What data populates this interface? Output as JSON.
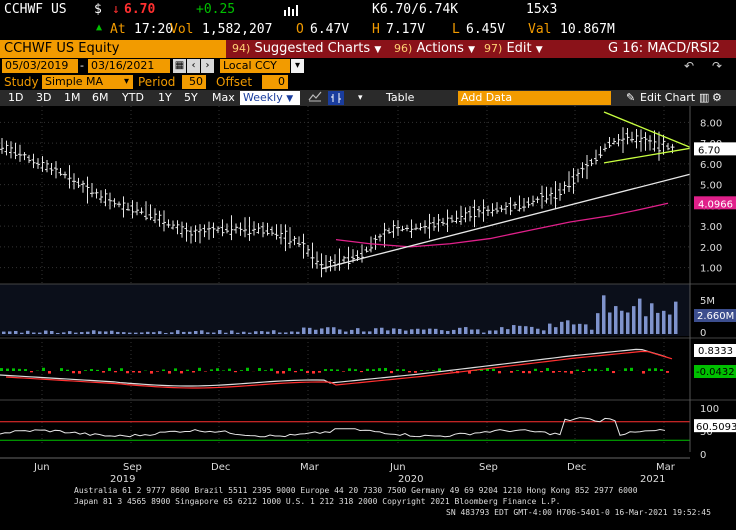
{
  "quote": {
    "ticker": "CCHWF US",
    "currency": "$",
    "last": "6.70",
    "change": "+0.25",
    "bid_ask": "K6.70/6.74K",
    "size": "15x3",
    "at_label": "At",
    "time": "17:20",
    "vol_label": "Vol",
    "volume": "1,582,207",
    "open_label": "O",
    "open": "6.47V",
    "high_label": "H",
    "high": "7.17V",
    "low_label": "L",
    "low": "6.45V",
    "val_label": "Val",
    "value": "10.867M"
  },
  "menubar": {
    "security": "CCHWF US Equity",
    "suggested_num": "94)",
    "suggested": "Suggested Charts",
    "actions_num": "96)",
    "actions": "Actions",
    "edit_num": "97)",
    "edit": "Edit",
    "page": "G 16: MACD/RSI2"
  },
  "settings": {
    "start_date": "05/03/2019",
    "end_date": "03/16/2021",
    "currency": "Local CCY",
    "study_label": "Study",
    "study": "Simple MA",
    "period_label": "Period",
    "period": "50",
    "offset_label": "Offset",
    "offset": "0"
  },
  "ranges": [
    "1D",
    "3D",
    "1M",
    "6M",
    "YTD",
    "1Y",
    "5Y",
    "Max"
  ],
  "interval": "Weekly",
  "table_label": "Table",
  "add_data_placeholder": "Add Data",
  "edit_chart": "Edit Chart",
  "price_axis": [
    "8.00",
    "7.00",
    "6.00",
    "5.00",
    "4.00",
    "3.00",
    "2.00",
    "1.00"
  ],
  "price_last_label": "6.70",
  "ma_last_label": "4.0966",
  "volume_axis": [
    "5M",
    "0"
  ],
  "volume_last_label": "2.660M",
  "macd_last_label": "0.8333",
  "macd_hist_label": "-0.0432",
  "rsi_axis": [
    "100",
    "50",
    "0"
  ],
  "rsi_last_label": "60.5093",
  "x_months": [
    "Jun",
    "Sep",
    "Dec",
    "Mar",
    "Jun",
    "Sep",
    "Dec",
    "Mar"
  ],
  "x_years": [
    "2019",
    "2020",
    "2021"
  ],
  "footer_line1": "Australia 61 2 9777 8600 Brazil 5511 2395 9000 Europe 44 20 7330 7500 Germany 49 69 9204 1210 Hong Kong 852 2977 6000",
  "footer_line2": "Japan 81 3 4565 8900        Singapore 65 6212 1000       U.S. 1 212 318 2000           Copyright 2021 Bloomberg Finance L.P.",
  "footer_line3": "SN 483793 EDT  GMT-4:00 H706-5401-0 16-Mar-2021 19:52:45",
  "colors": {
    "accent": "#f29b00",
    "bar_bg": "#8a1219",
    "up": "#00c000",
    "down": "#ff3030",
    "ma": "#e0208a",
    "trend": "#c8ff40"
  },
  "chart_data": {
    "type": "line",
    "title": "",
    "xlabel": "",
    "ylabel": "",
    "ylim": [
      0.5,
      8.5
    ],
    "x": [
      "2019-05",
      "2019-06",
      "2019-09",
      "2019-12",
      "2020-03",
      "2020-06",
      "2020-09",
      "2020-12",
      "2021-03"
    ],
    "series": [
      {
        "values": [
          6.9,
          6.3,
          4.2,
          2.3,
          1.0,
          2.6,
          3.9,
          6.5,
          6.7
        ]
      },
      {
        "values": [
          null,
          null,
          null,
          null,
          null,
          2.4,
          2.5,
          3.4,
          4.1
        ]
      }
    ]
  }
}
